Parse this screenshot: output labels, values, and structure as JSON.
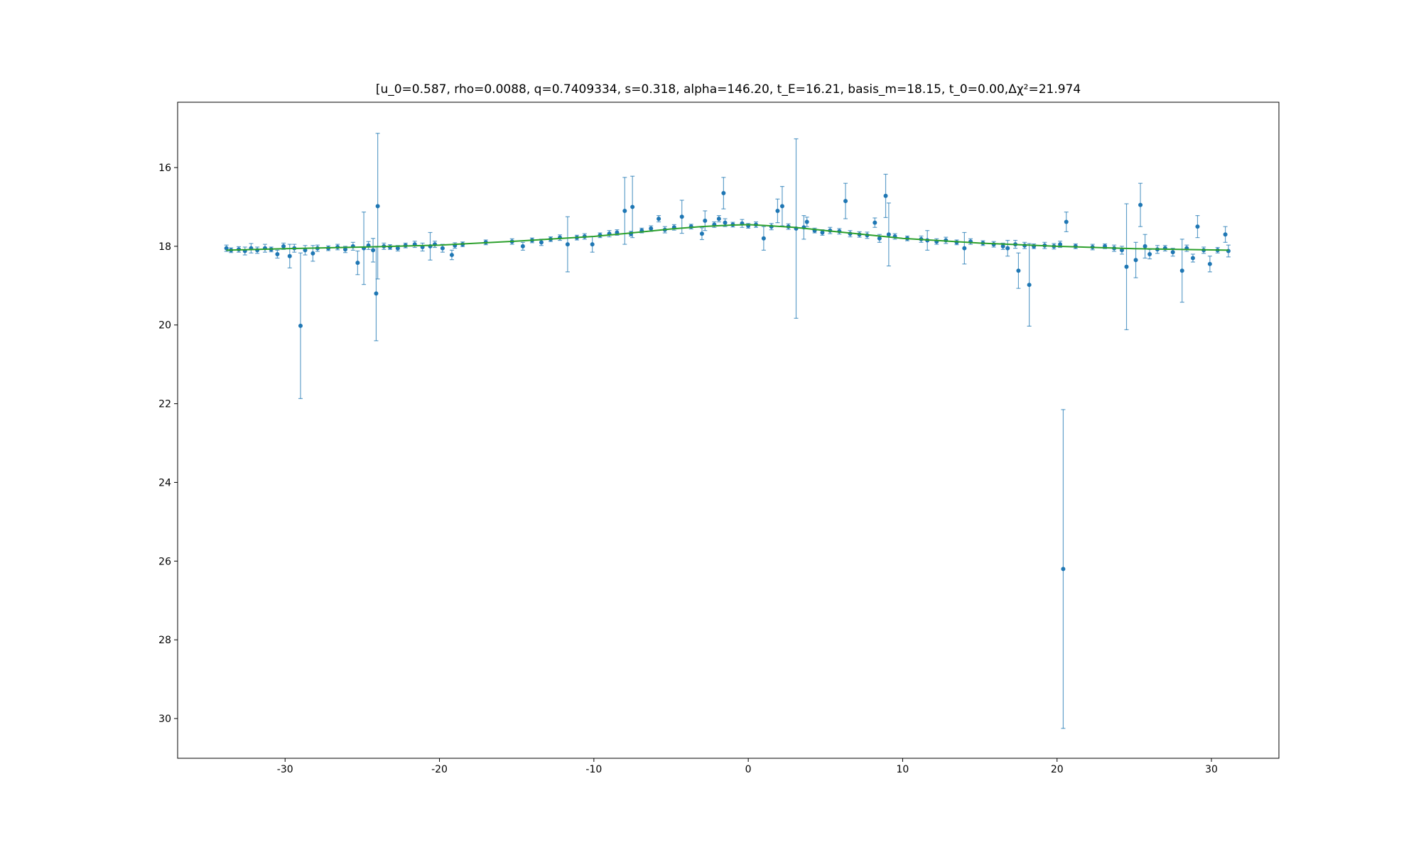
{
  "chart_data": {
    "type": "errorbar",
    "title": "[u_0=0.587, rho=0.0088, q=0.7409334, s=0.318, alpha=146.20, t_E=16.21, basis_m=18.15, t_0=0.00,Δχ²=21.974",
    "xlim": [
      -36.96,
      34.37
    ],
    "ylim": [
      31.01,
      14.34
    ],
    "xticks": [
      -30,
      -20,
      -10,
      0,
      10,
      20,
      30
    ],
    "yticks": [
      16,
      18,
      20,
      22,
      24,
      26,
      28,
      30
    ],
    "series": [
      {
        "type": "errorbar",
        "color": "#1f77b4",
        "x": [
          -33.8,
          -33.5,
          -33.0,
          -32.6,
          -32.2,
          -31.8,
          -31.3,
          -30.9,
          -30.5,
          -30.1,
          -29.7,
          -29.4,
          -29.0,
          -28.7,
          -28.2,
          -27.9,
          -27.2,
          -26.6,
          -26.1,
          -25.6,
          -25.3,
          -24.9,
          -24.6,
          -24.3,
          -24.1,
          -24.0,
          -23.6,
          -23.2,
          -22.7,
          -22.2,
          -21.6,
          -21.1,
          -20.6,
          -20.3,
          -19.8,
          -19.2,
          -19.0,
          -18.5,
          -17.0,
          -15.3,
          -14.6,
          -14.0,
          -13.4,
          -12.8,
          -12.2,
          -11.7,
          -11.1,
          -10.6,
          -10.1,
          -9.6,
          -9.0,
          -8.5,
          -8.0,
          -7.6,
          -7.5,
          -6.9,
          -6.3,
          -5.8,
          -5.4,
          -4.8,
          -4.3,
          -3.7,
          -3.0,
          -2.8,
          -2.2,
          -1.9,
          -1.6,
          -1.5,
          -1.0,
          -0.4,
          0.0,
          0.5,
          1.0,
          1.5,
          1.9,
          2.2,
          2.6,
          3.1,
          3.6,
          3.8,
          4.3,
          4.8,
          5.3,
          5.9,
          6.3,
          6.6,
          7.2,
          7.7,
          8.2,
          8.5,
          8.9,
          9.1,
          9.5,
          10.3,
          11.2,
          11.6,
          12.2,
          12.8,
          13.5,
          14.0,
          14.4,
          15.2,
          15.9,
          16.5,
          16.8,
          17.3,
          17.5,
          17.9,
          18.2,
          18.5,
          19.2,
          19.8,
          20.2,
          20.4,
          20.6,
          21.2,
          22.3,
          23.1,
          23.7,
          24.2,
          24.5,
          25.1,
          25.4,
          25.7,
          26.0,
          26.5,
          27.0,
          27.5,
          28.1,
          28.4,
          28.8,
          29.1,
          29.5,
          29.9,
          30.4,
          30.9,
          31.1
        ],
        "values": [
          18.05,
          18.1,
          18.08,
          18.12,
          18.05,
          18.1,
          18.05,
          18.08,
          18.2,
          18.0,
          18.25,
          18.05,
          20.02,
          18.1,
          18.18,
          18.05,
          18.05,
          18.02,
          18.08,
          18.0,
          18.42,
          18.05,
          17.98,
          18.1,
          19.2,
          16.98,
          18.0,
          18.02,
          18.05,
          17.98,
          17.95,
          18.02,
          18.0,
          17.95,
          18.05,
          18.22,
          17.98,
          17.95,
          17.9,
          17.88,
          18.0,
          17.85,
          17.9,
          17.82,
          17.78,
          17.95,
          17.78,
          17.75,
          17.95,
          17.72,
          17.68,
          17.65,
          17.1,
          17.68,
          17.0,
          17.6,
          17.55,
          17.3,
          17.58,
          17.52,
          17.25,
          17.5,
          17.68,
          17.35,
          17.45,
          17.3,
          16.65,
          17.4,
          17.45,
          17.42,
          17.48,
          17.45,
          17.8,
          17.5,
          17.1,
          16.98,
          17.5,
          17.55,
          17.52,
          17.38,
          17.6,
          17.65,
          17.6,
          17.62,
          16.85,
          17.68,
          17.7,
          17.72,
          17.4,
          17.8,
          16.72,
          17.7,
          17.75,
          17.8,
          17.82,
          17.85,
          17.88,
          17.85,
          17.9,
          18.05,
          17.88,
          17.92,
          17.95,
          18.0,
          18.05,
          17.95,
          18.62,
          17.98,
          18.98,
          18.0,
          17.98,
          18.0,
          17.95,
          26.2,
          17.38,
          18.0,
          18.02,
          18.0,
          18.05,
          18.1,
          18.52,
          18.35,
          16.95,
          18.0,
          18.2,
          18.08,
          18.05,
          18.15,
          18.62,
          18.05,
          18.3,
          17.5,
          18.1,
          18.45,
          18.1,
          17.7,
          18.12
        ],
        "errors": [
          0.08,
          0.06,
          0.07,
          0.1,
          0.12,
          0.08,
          0.1,
          0.06,
          0.1,
          0.08,
          0.3,
          0.1,
          1.85,
          0.12,
          0.2,
          0.08,
          0.06,
          0.07,
          0.08,
          0.1,
          0.3,
          0.92,
          0.1,
          0.3,
          1.2,
          1.85,
          0.08,
          0.06,
          0.07,
          0.06,
          0.08,
          0.1,
          0.35,
          0.08,
          0.1,
          0.12,
          0.07,
          0.06,
          0.06,
          0.07,
          0.1,
          0.06,
          0.08,
          0.06,
          0.07,
          0.7,
          0.06,
          0.07,
          0.2,
          0.06,
          0.08,
          0.07,
          0.85,
          0.06,
          0.78,
          0.06,
          0.07,
          0.08,
          0.08,
          0.07,
          0.42,
          0.06,
          0.15,
          0.25,
          0.07,
          0.08,
          0.4,
          0.1,
          0.06,
          0.1,
          0.06,
          0.07,
          0.3,
          0.08,
          0.3,
          0.5,
          0.07,
          2.28,
          0.3,
          0.12,
          0.06,
          0.07,
          0.08,
          0.07,
          0.45,
          0.08,
          0.07,
          0.08,
          0.12,
          0.1,
          0.55,
          0.8,
          0.07,
          0.06,
          0.08,
          0.25,
          0.07,
          0.08,
          0.06,
          0.4,
          0.07,
          0.06,
          0.07,
          0.08,
          0.2,
          0.1,
          0.45,
          0.08,
          1.05,
          0.06,
          0.08,
          0.07,
          0.08,
          4.05,
          0.25,
          0.06,
          0.07,
          0.06,
          0.08,
          0.1,
          1.6,
          0.45,
          0.55,
          0.3,
          0.12,
          0.1,
          0.07,
          0.1,
          0.8,
          0.08,
          0.1,
          0.28,
          0.08,
          0.2,
          0.07,
          0.2,
          0.15
        ]
      },
      {
        "type": "line",
        "color": "#2ca02c",
        "x": [
          -33.8,
          -30,
          -25,
          -20,
          -15,
          -10,
          -7,
          -5,
          -3,
          -1,
          0,
          1,
          3,
          5,
          7,
          10,
          15,
          20,
          25,
          31.1
        ],
        "values": [
          18.1,
          18.06,
          18.02,
          17.97,
          17.87,
          17.75,
          17.64,
          17.56,
          17.5,
          17.46,
          17.45,
          17.47,
          17.52,
          17.6,
          17.68,
          17.8,
          17.92,
          18.0,
          18.06,
          18.1
        ]
      }
    ]
  }
}
